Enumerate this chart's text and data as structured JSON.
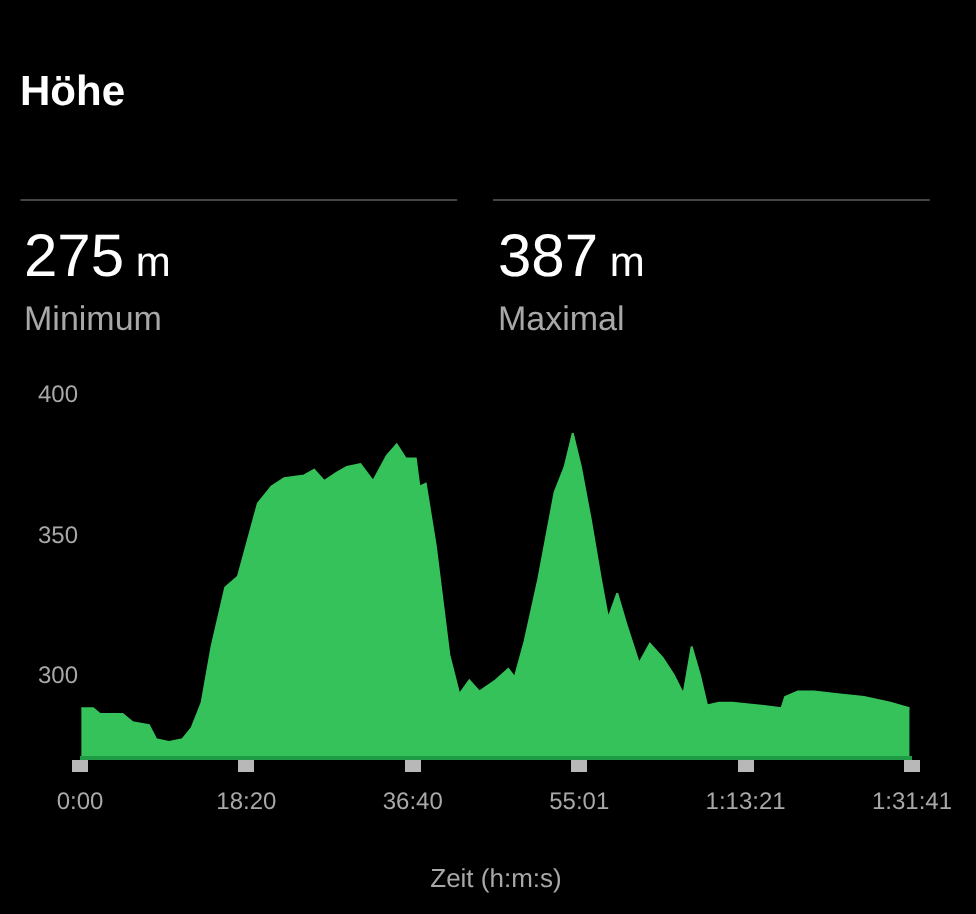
{
  "chart_data": {
    "type": "area",
    "title": "Höhe",
    "xlabel": "Zeit (h:m:s)",
    "annotations": [
      "275 m",
      "Minimum",
      "387 m",
      "Maximal"
    ],
    "x": [
      0.15,
      1.45,
      2.2,
      4.7,
      5.8,
      7.6,
      8.4,
      9.8,
      11.3,
      12.3,
      13.4,
      14.5,
      16.0,
      17.4,
      18.5,
      19.6,
      21.1,
      22.5,
      24.7,
      25.8,
      26.9,
      28.3,
      29.4,
      30.9,
      32.3,
      33.8,
      34.9,
      35.9,
      37.0,
      37.4,
      38.1,
      39.2,
      40.7,
      41.8,
      42.9,
      44.0,
      45.8,
      47.2,
      47.9,
      49.0,
      50.5,
      52.3,
      53.4,
      54.3,
      55.2,
      56.3,
      57.4,
      58.2,
      59.2,
      60.3,
      61.6,
      62.8,
      64.2,
      65.4,
      66.5,
      67.4,
      68.3,
      69.1,
      70.4,
      71.9,
      74.8,
      77.3,
      77.7,
      79.1,
      80.9,
      83.5,
      86.4,
      89.3,
      91.4
    ],
    "series": [
      {
        "color": "#36c25a",
        "values": [
          288,
          288,
          286,
          286,
          283,
          282,
          277,
          276,
          277,
          281,
          290,
          310,
          331,
          335,
          348,
          361,
          367,
          370,
          371,
          373,
          369,
          372,
          374,
          375,
          369,
          378,
          382,
          377,
          377,
          367,
          368,
          346,
          307,
          293,
          298,
          294,
          298,
          302,
          299,
          312,
          334,
          365,
          374,
          386,
          374,
          355,
          334,
          320,
          329,
          317,
          304,
          311,
          306,
          300,
          293,
          310,
          300,
          289,
          290,
          290,
          289,
          288,
          292,
          294,
          294,
          293,
          292,
          290,
          288
        ]
      }
    ],
    "xlim": [
      0,
      91.683
    ],
    "xticks": [
      {
        "value": 0,
        "label": "0:00"
      },
      {
        "value": 18.333,
        "label": "18:20"
      },
      {
        "value": 36.667,
        "label": "36:40"
      },
      {
        "value": 55.017,
        "label": "55:01"
      },
      {
        "value": 73.35,
        "label": "1:13:21"
      },
      {
        "value": 91.683,
        "label": "1:31:41"
      }
    ],
    "ylim": [
      271,
      400
    ],
    "yticks": [
      300,
      350,
      400
    ],
    "grid": false,
    "legend": false
  }
}
